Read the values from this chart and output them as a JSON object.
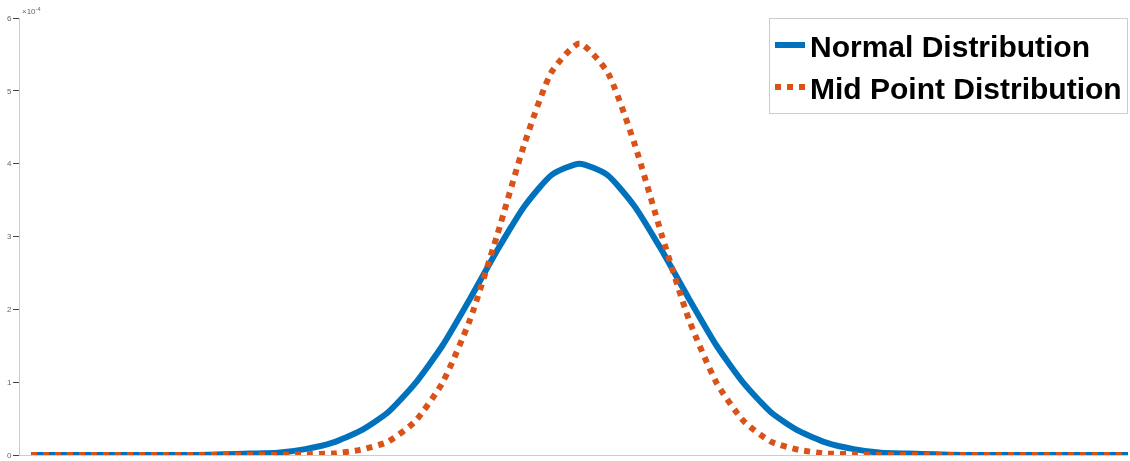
{
  "chart_data": {
    "type": "line",
    "categories": [
      null,
      null,
      null,
      null,
      null,
      null,
      null,
      null,
      null,
      null,
      null,
      null,
      null,
      null,
      null,
      null,
      null,
      null,
      null,
      null,
      null,
      null,
      null,
      null,
      null,
      null,
      null,
      null,
      null,
      null,
      null,
      null,
      null,
      null,
      null,
      null,
      null,
      null,
      null,
      null,
      null
    ],
    "series": [
      {
        "name": "Normal Distribution",
        "color": "#0072bd",
        "line_style": "solid",
        "values": [
          0,
          0,
          0,
          0,
          0,
          0,
          0,
          0.01,
          0.02,
          0.03,
          0.08,
          0.17,
          0.33,
          0.58,
          0.98,
          1.5,
          2.14,
          2.81,
          3.42,
          3.85,
          4.0,
          3.85,
          3.42,
          2.81,
          2.14,
          1.5,
          0.98,
          0.58,
          0.33,
          0.17,
          0.08,
          0.03,
          0.02,
          0.01,
          0,
          0,
          0,
          0,
          0,
          0,
          0
        ]
      },
      {
        "name": "Mid Point Distribution",
        "color": "#d95319",
        "line_style": "dotted",
        "values": [
          0,
          0,
          0,
          0,
          0,
          0,
          0,
          0,
          0,
          0,
          0.01,
          0.02,
          0.07,
          0.18,
          0.46,
          0.99,
          1.85,
          3.02,
          4.28,
          5.27,
          5.65,
          5.27,
          4.28,
          3.02,
          1.85,
          0.99,
          0.46,
          0.18,
          0.07,
          0.02,
          0.01,
          0,
          0,
          0,
          0,
          0,
          0,
          0,
          0,
          0,
          0
        ]
      }
    ],
    "ylim": [
      0,
      6
    ],
    "yticks": [
      0,
      1,
      2,
      3,
      4,
      5,
      6
    ],
    "annotations": [
      "×10$^{-4}$"
    ],
    "legend": "top right",
    "marker": "none"
  }
}
